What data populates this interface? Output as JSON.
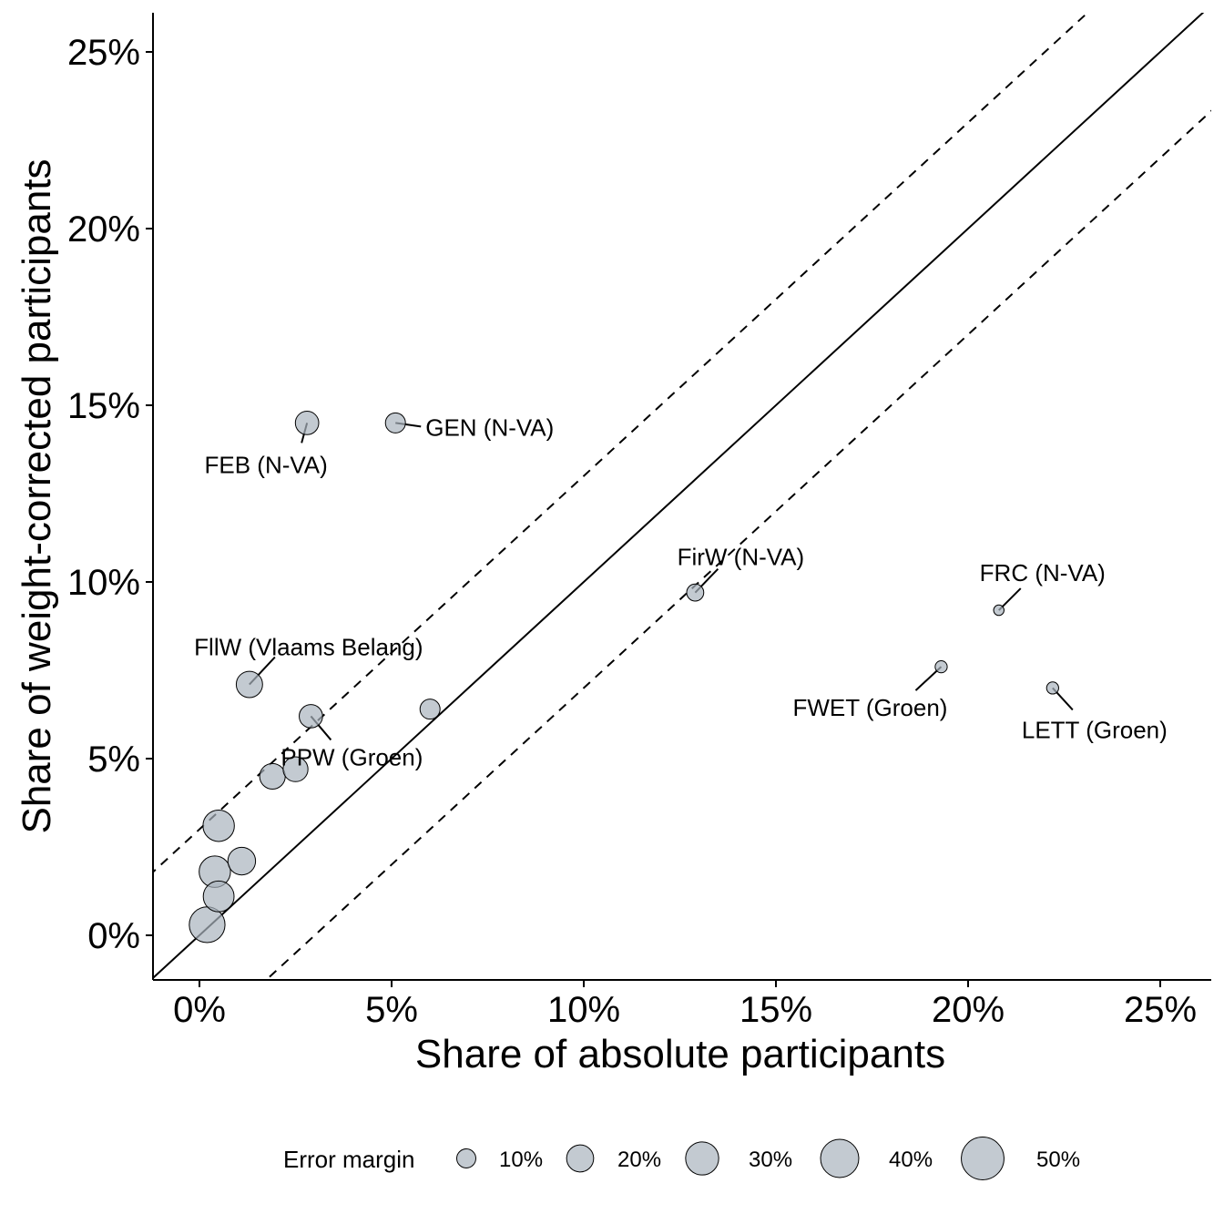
{
  "chart_data": {
    "type": "scatter",
    "title": "",
    "xlabel": "Share of absolute participants",
    "ylabel": "Share of weight-corrected participants",
    "xlim": [
      -1.2,
      26.2
    ],
    "ylim": [
      -1.2,
      26.2
    ],
    "x_ticks": [
      {
        "value": 0,
        "label": "0%"
      },
      {
        "value": 5,
        "label": "5%"
      },
      {
        "value": 10,
        "label": "10%"
      },
      {
        "value": 15,
        "label": "15%"
      },
      {
        "value": 20,
        "label": "20%"
      },
      {
        "value": 25,
        "label": "25%"
      }
    ],
    "y_ticks": [
      {
        "value": 0,
        "label": "0%"
      },
      {
        "value": 5,
        "label": "5%"
      },
      {
        "value": 10,
        "label": "10%"
      },
      {
        "value": 15,
        "label": "15%"
      },
      {
        "value": 20,
        "label": "20%"
      },
      {
        "value": 25,
        "label": "25%"
      }
    ],
    "grid": false,
    "reference_lines": [
      {
        "style": "solid",
        "slope": 1,
        "intercept": 0
      },
      {
        "style": "dashed",
        "slope": 1,
        "intercept": 3
      },
      {
        "style": "dashed",
        "slope": 1,
        "intercept": -3
      }
    ],
    "point_color": "#a9b4be",
    "point_stroke": "#000000",
    "point_opacity": 0.7,
    "points": [
      {
        "x": 2.8,
        "y": 14.5,
        "error_margin": 15,
        "label": "FEB (N-VA)"
      },
      {
        "x": 5.1,
        "y": 14.5,
        "error_margin": 11,
        "label": "GEN (N-VA)"
      },
      {
        "x": 12.9,
        "y": 9.7,
        "error_margin": 8,
        "label": "FirW (N-VA)"
      },
      {
        "x": 20.8,
        "y": 9.2,
        "error_margin": 3,
        "label": "FRC (N-VA)"
      },
      {
        "x": 19.3,
        "y": 7.6,
        "error_margin": 4,
        "label": "FWET (Groen)"
      },
      {
        "x": 22.2,
        "y": 7.0,
        "error_margin": 4,
        "label": "LETT (Groen)"
      },
      {
        "x": 1.3,
        "y": 7.1,
        "error_margin": 19,
        "label": "FllW (Vlaams Belang)"
      },
      {
        "x": 2.9,
        "y": 6.2,
        "error_margin": 15,
        "label": "PPW (Groen)"
      },
      {
        "x": 6.0,
        "y": 6.4,
        "error_margin": 11,
        "label": ""
      },
      {
        "x": 2.5,
        "y": 4.7,
        "error_margin": 17,
        "label": ""
      },
      {
        "x": 1.9,
        "y": 4.5,
        "error_margin": 18,
        "label": ""
      },
      {
        "x": 0.5,
        "y": 3.1,
        "error_margin": 27,
        "label": ""
      },
      {
        "x": 1.1,
        "y": 2.1,
        "error_margin": 21,
        "label": ""
      },
      {
        "x": 0.4,
        "y": 1.8,
        "error_margin": 27,
        "label": ""
      },
      {
        "x": 0.5,
        "y": 1.1,
        "error_margin": 26,
        "label": ""
      },
      {
        "x": 0.2,
        "y": 0.3,
        "error_margin": 35,
        "label": ""
      }
    ],
    "legend": {
      "title": "Error margin",
      "placement": "bottom",
      "entries": [
        {
          "value": 10,
          "label": "10%"
        },
        {
          "value": 20,
          "label": "20%"
        },
        {
          "value": 30,
          "label": "30%"
        },
        {
          "value": 40,
          "label": "40%"
        },
        {
          "value": 50,
          "label": "50%"
        }
      ]
    }
  }
}
